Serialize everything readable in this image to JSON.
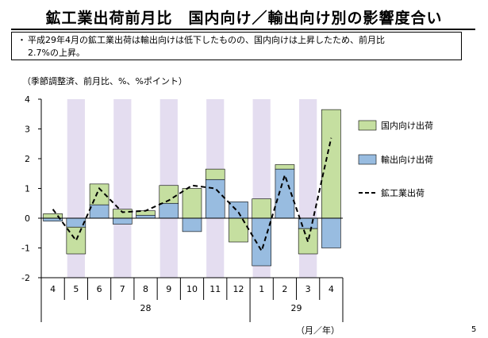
{
  "page": {
    "title": "鉱工業出荷前月比　国内向け／輸出向け別の影響度合い",
    "bullet": "・",
    "note_line1": "平成29年4月の鉱工業出荷は輸出向けは低下したものの、国内向けは上昇したため、前月比",
    "note_line2": "2.7%の上昇。",
    "units": "（季節調整済、前月比、%、%ポイント）",
    "page_number": "5",
    "x_unit_label": "（月／年）"
  },
  "colors": {
    "domestic": "#C5DFA0",
    "export": "#98BCE0",
    "shade": "#E4DDF0",
    "line": "#000000"
  },
  "chart_data": {
    "type": "bar",
    "stacked": true,
    "categories": [
      "4",
      "5",
      "6",
      "7",
      "8",
      "9",
      "10",
      "11",
      "12",
      "1",
      "2",
      "3",
      "4"
    ],
    "year_labels": [
      {
        "label": "28",
        "from": 0,
        "to": 8
      },
      {
        "label": "29",
        "from": 9,
        "to": 12
      }
    ],
    "shaded_categories": [
      1,
      3,
      5,
      7,
      9,
      11
    ],
    "ylim": [
      -2,
      4
    ],
    "yticks": [
      -2,
      -1,
      0,
      1,
      2,
      3,
      4
    ],
    "series": [
      {
        "name": "国内向け出荷",
        "kind": "bar",
        "values": [
          0.15,
          -0.9,
          0.7,
          0.3,
          0.15,
          0.6,
          1.0,
          0.35,
          -0.8,
          0.65,
          0.15,
          -0.85,
          3.65
        ]
      },
      {
        "name": "輸出向け出荷",
        "kind": "bar",
        "values": [
          -0.1,
          -0.3,
          0.45,
          -0.2,
          0.1,
          0.5,
          -0.45,
          1.3,
          0.55,
          -1.6,
          1.65,
          -0.35,
          -1.0
        ]
      },
      {
        "name": "鉱工業出荷",
        "kind": "line",
        "dashed": true,
        "values": [
          0.3,
          -0.75,
          1.0,
          0.2,
          0.25,
          0.6,
          1.1,
          1.0,
          0.2,
          -1.1,
          1.45,
          -0.8,
          2.7
        ]
      }
    ],
    "legend_position": "right",
    "grid": false
  }
}
